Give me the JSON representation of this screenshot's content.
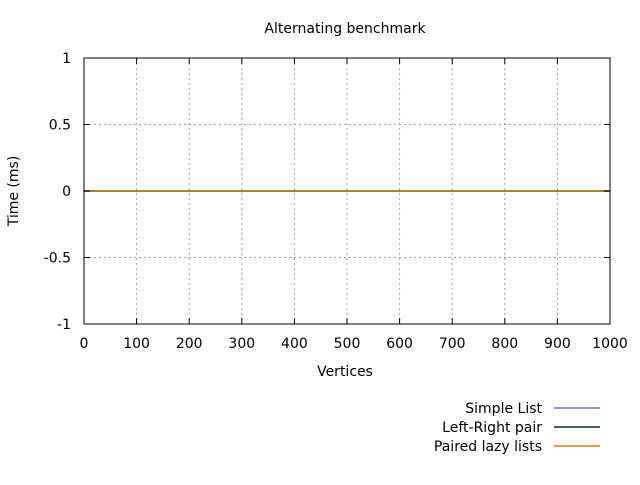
{
  "chart_data": {
    "type": "line",
    "title": "Alternating benchmark",
    "xlabel": "Vertices",
    "ylabel": "Time (ms)",
    "xlim": [
      0,
      1000
    ],
    "ylim": [
      -1,
      1
    ],
    "xticks": [
      0,
      100,
      200,
      300,
      400,
      500,
      600,
      700,
      800,
      900,
      1000
    ],
    "yticks": [
      -1,
      -0.5,
      0,
      0.5,
      1
    ],
    "xtick_labels": [
      "0",
      "100",
      "200",
      "300",
      "400",
      "500",
      "600",
      "700",
      "800",
      "900",
      "1000"
    ],
    "ytick_labels": [
      "-1",
      "-0.5",
      "0",
      "0.5",
      "1"
    ],
    "grid": true,
    "legend_position": "bottom-right, below plot",
    "series": [
      {
        "name": "Simple List",
        "color": "#7b68b5",
        "x": [
          0,
          1000
        ],
        "y": [
          0,
          0
        ]
      },
      {
        "name": "Left-Right pair",
        "color": "#0b2e2e",
        "x": [
          0,
          1000
        ],
        "y": [
          0,
          0
        ]
      },
      {
        "name": "Paired lazy lists",
        "color": "#c08a08",
        "x": [
          0,
          1000
        ],
        "y": [
          0,
          0
        ]
      }
    ]
  }
}
